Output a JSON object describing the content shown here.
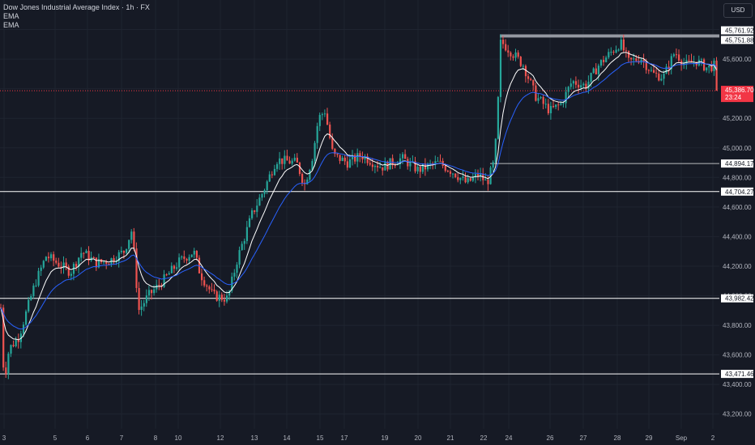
{
  "header": {
    "title": "Dow Jones Industrial Average Index · 1h · FX",
    "indicators": [
      "EMA",
      "EMA"
    ]
  },
  "currency_button": "USD",
  "colors": {
    "background": "#161a25",
    "grid": "#1f2430",
    "up_candle": "#26a69a",
    "down_candle": "#ef5350",
    "ema_fast": "#ffffff",
    "ema_slow": "#2962ff",
    "level_line": "#ffffff",
    "price_line": "#f23645",
    "label_bg": "#ffffff",
    "label_text": "#131722",
    "axis_text": "#b2b5be"
  },
  "chart_data": {
    "type": "candlestick",
    "title": "Dow Jones Industrial Average Index · 1h · FX",
    "ylim": [
      43100,
      46000
    ],
    "y_ticks": [
      "43,200.00",
      "43,400.00",
      "43,600.00",
      "43,800.00",
      "44,000.00",
      "44,200.00",
      "44,400.00",
      "44,600.00",
      "44,800.00",
      "45,000.00",
      "45,200.00",
      "45,400.00",
      "45,600.00",
      "45,800.00"
    ],
    "x_ticks": [
      "3",
      "5",
      "6",
      "7",
      "8",
      "10",
      "12",
      "13",
      "14",
      "15",
      "17",
      "19",
      "20",
      "21",
      "22",
      "24",
      "26",
      "27",
      "28",
      "29",
      "Sep",
      "2"
    ],
    "grid": true,
    "levels": [
      {
        "label": "45,761.92",
        "value": 45761.92,
        "style": "band"
      },
      {
        "label": "45,751.88",
        "value": 45751.88,
        "style": "band"
      },
      {
        "label": "44,894.17",
        "value": 44894.17,
        "style": "partial"
      },
      {
        "label": "44,704.27",
        "value": 44704.27,
        "style": "full"
      },
      {
        "label": "43,982.42",
        "value": 43982.42,
        "style": "full"
      },
      {
        "label": "43,471.46",
        "value": 43471.46,
        "style": "full"
      }
    ],
    "last_price": {
      "label": "45,386.70",
      "value": 45386.7,
      "countdown": "23:24"
    },
    "price_path": [
      {
        "t": 0,
        "p": 43920
      },
      {
        "t": 4,
        "p": 43420
      },
      {
        "t": 10,
        "p": 43640
      },
      {
        "t": 22,
        "p": 43720
      },
      {
        "t": 42,
        "p": 44080
      },
      {
        "t": 56,
        "p": 44270
      },
      {
        "t": 70,
        "p": 44220
      },
      {
        "t": 86,
        "p": 44160
      },
      {
        "t": 100,
        "p": 44300
      },
      {
        "t": 118,
        "p": 44220
      },
      {
        "t": 135,
        "p": 44240
      },
      {
        "t": 152,
        "p": 44300
      },
      {
        "t": 162,
        "p": 44450
      },
      {
        "t": 170,
        "p": 43900
      },
      {
        "t": 182,
        "p": 44000
      },
      {
        "t": 200,
        "p": 44100
      },
      {
        "t": 220,
        "p": 44230
      },
      {
        "t": 238,
        "p": 44300
      },
      {
        "t": 246,
        "p": 44150
      },
      {
        "t": 262,
        "p": 44000
      },
      {
        "t": 280,
        "p": 43980
      },
      {
        "t": 292,
        "p": 44250
      },
      {
        "t": 310,
        "p": 44550
      },
      {
        "t": 325,
        "p": 44720
      },
      {
        "t": 340,
        "p": 44920
      },
      {
        "t": 365,
        "p": 44900
      },
      {
        "t": 375,
        "p": 44750
      },
      {
        "t": 385,
        "p": 44950
      },
      {
        "t": 392,
        "p": 45200
      },
      {
        "t": 400,
        "p": 45250
      },
      {
        "t": 410,
        "p": 44950
      },
      {
        "t": 428,
        "p": 44900
      },
      {
        "t": 445,
        "p": 44950
      },
      {
        "t": 470,
        "p": 44870
      },
      {
        "t": 495,
        "p": 44930
      },
      {
        "t": 515,
        "p": 44850
      },
      {
        "t": 540,
        "p": 44900
      },
      {
        "t": 560,
        "p": 44830
      },
      {
        "t": 575,
        "p": 44760
      },
      {
        "t": 590,
        "p": 44820
      },
      {
        "t": 600,
        "p": 44760
      },
      {
        "t": 608,
        "p": 44890
      },
      {
        "t": 612,
        "p": 45100
      },
      {
        "t": 617,
        "p": 45720
      },
      {
        "t": 630,
        "p": 45650
      },
      {
        "t": 645,
        "p": 45560
      },
      {
        "t": 660,
        "p": 45350
      },
      {
        "t": 678,
        "p": 45250
      },
      {
        "t": 692,
        "p": 45300
      },
      {
        "t": 705,
        "p": 45450
      },
      {
        "t": 722,
        "p": 45420
      },
      {
        "t": 738,
        "p": 45560
      },
      {
        "t": 752,
        "p": 45640
      },
      {
        "t": 765,
        "p": 45710
      },
      {
        "t": 775,
        "p": 45580
      },
      {
        "t": 790,
        "p": 45610
      },
      {
        "t": 805,
        "p": 45500
      },
      {
        "t": 818,
        "p": 45480
      },
      {
        "t": 832,
        "p": 45650
      },
      {
        "t": 845,
        "p": 45560
      },
      {
        "t": 858,
        "p": 45590
      },
      {
        "t": 872,
        "p": 45540
      },
      {
        "t": 882,
        "p": 45560
      },
      {
        "t": 886,
        "p": 45386.7
      }
    ]
  }
}
